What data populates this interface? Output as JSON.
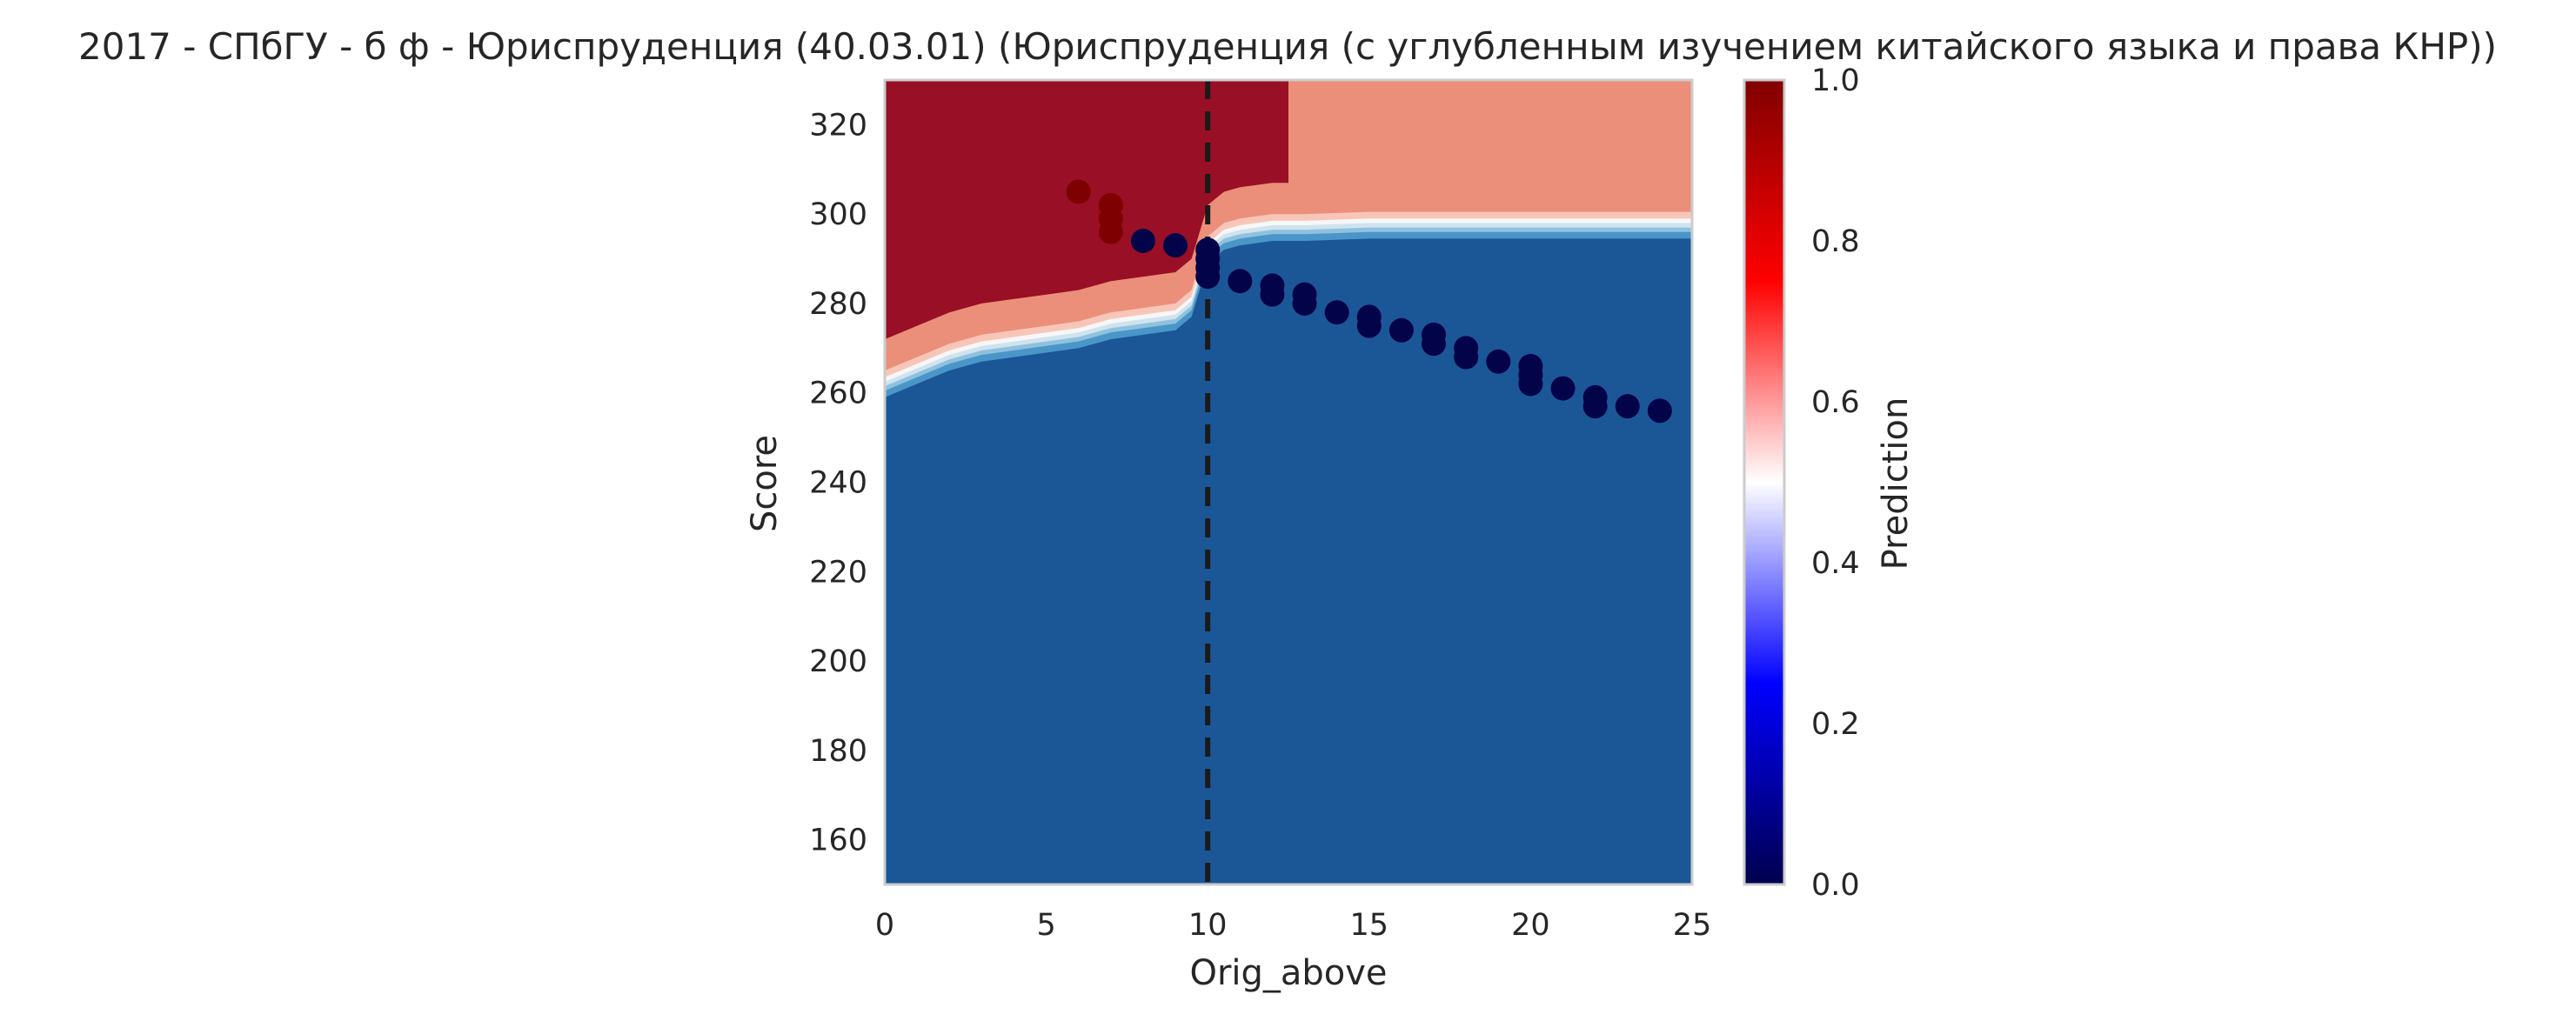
{
  "chart_data": {
    "type": "heatmap",
    "title": "2017 - СПбГУ - б ф - Юриспруденция (40.03.01) (Юриспруденция (с углубленным изучением китайского языка и права КНР))",
    "xlabel": "Orig_above",
    "ylabel": "Score",
    "xlim": [
      0,
      25
    ],
    "ylim": [
      150,
      330
    ],
    "x_ticks": [
      "0",
      "5",
      "10",
      "15",
      "20",
      "25"
    ],
    "y_ticks": [
      "160",
      "180",
      "200",
      "220",
      "240",
      "260",
      "280",
      "300",
      "320"
    ],
    "grid": false,
    "colormap": "seismic",
    "colorbar": {
      "label": "Prediction",
      "range": [
        0,
        1
      ],
      "ticks": [
        "0.0",
        "0.2",
        "0.4",
        "0.6",
        "0.8",
        "1.0"
      ]
    },
    "threshold_line": {
      "x": 10,
      "style": "dashed",
      "color": "#1a1a1a"
    },
    "contour_regions": [
      {
        "level": 0.95,
        "color": "#990f26"
      },
      {
        "level": 0.85,
        "color": "#dc6a53"
      },
      {
        "level": 0.75,
        "color": "#eb8f7a"
      },
      {
        "level": 0.65,
        "color": "#f8c6b9"
      },
      {
        "level": 0.55,
        "color": "#f7f7f7"
      },
      {
        "level": 0.45,
        "color": "#cfe3ef"
      },
      {
        "level": 0.35,
        "color": "#8fc1de"
      },
      {
        "level": 0.25,
        "color": "#4a96c8"
      },
      {
        "level": 0.05,
        "color": "#1b5797"
      }
    ],
    "boundary": {
      "x": [
        0,
        1,
        2,
        3,
        4,
        5,
        6,
        7,
        8,
        9,
        9.5,
        10,
        10.5,
        11,
        12,
        12.5,
        13,
        15,
        18,
        20,
        25
      ],
      "y": [
        262,
        265,
        268,
        270,
        271,
        272,
        273,
        275,
        276,
        277,
        280,
        292,
        295,
        296,
        297,
        297,
        297,
        297.5,
        297.5,
        297.5,
        297.5
      ]
    },
    "points": [
      {
        "x": 6,
        "y": 305,
        "value": 1.0
      },
      {
        "x": 7,
        "y": 302,
        "value": 1.0
      },
      {
        "x": 7,
        "y": 299,
        "value": 1.0
      },
      {
        "x": 7,
        "y": 296,
        "value": 1.0
      },
      {
        "x": 8,
        "y": 294,
        "value": 0.0
      },
      {
        "x": 9,
        "y": 293,
        "value": 0.0
      },
      {
        "x": 10,
        "y": 292,
        "value": 0.0
      },
      {
        "x": 10,
        "y": 290,
        "value": 0.0
      },
      {
        "x": 10,
        "y": 288,
        "value": 0.0
      },
      {
        "x": 10,
        "y": 286,
        "value": 0.0
      },
      {
        "x": 11,
        "y": 285,
        "value": 0.0
      },
      {
        "x": 12,
        "y": 284,
        "value": 0.0
      },
      {
        "x": 12,
        "y": 282,
        "value": 0.0
      },
      {
        "x": 13,
        "y": 282,
        "value": 0.0
      },
      {
        "x": 13,
        "y": 280,
        "value": 0.0
      },
      {
        "x": 14,
        "y": 278,
        "value": 0.0
      },
      {
        "x": 15,
        "y": 277,
        "value": 0.0
      },
      {
        "x": 15,
        "y": 275,
        "value": 0.0
      },
      {
        "x": 16,
        "y": 274,
        "value": 0.0
      },
      {
        "x": 17,
        "y": 273,
        "value": 0.0
      },
      {
        "x": 17,
        "y": 271,
        "value": 0.0
      },
      {
        "x": 18,
        "y": 270,
        "value": 0.0
      },
      {
        "x": 18,
        "y": 268,
        "value": 0.0
      },
      {
        "x": 19,
        "y": 267,
        "value": 0.0
      },
      {
        "x": 20,
        "y": 266,
        "value": 0.0
      },
      {
        "x": 20,
        "y": 264,
        "value": 0.0
      },
      {
        "x": 20,
        "y": 262,
        "value": 0.0
      },
      {
        "x": 21,
        "y": 261,
        "value": 0.0
      },
      {
        "x": 22,
        "y": 259,
        "value": 0.0
      },
      {
        "x": 22,
        "y": 257,
        "value": 0.0
      },
      {
        "x": 23,
        "y": 257,
        "value": 0.0
      },
      {
        "x": 24,
        "y": 256,
        "value": 0.0
      }
    ]
  }
}
